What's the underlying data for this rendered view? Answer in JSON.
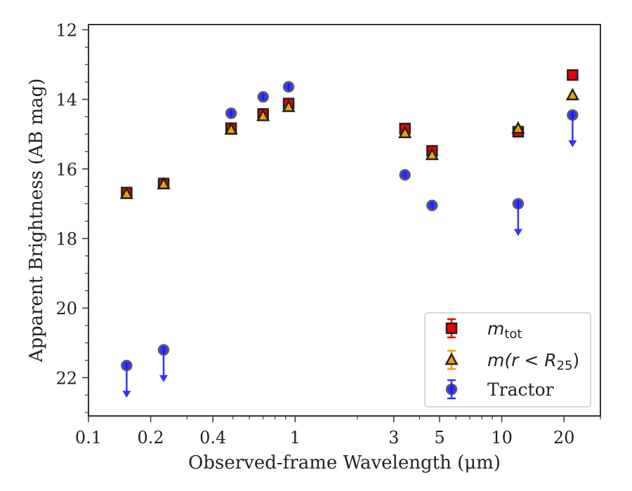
{
  "chart_data": {
    "type": "scatter",
    "xlabel": "Observed-frame Wavelength (μm)",
    "ylabel": "Apparent Brightness (AB mag)",
    "xscale": "log",
    "xlim": [
      0.1,
      30
    ],
    "ylim": [
      23.1,
      11.85
    ],
    "y_inverted": true,
    "x_ticks": [
      0.1,
      0.2,
      0.4,
      1,
      3,
      5,
      10,
      20
    ],
    "x_tick_labels": [
      "0.1",
      "0.2",
      "0.4",
      "1",
      "3",
      "5",
      "10",
      "20"
    ],
    "y_ticks": [
      12,
      14,
      16,
      18,
      20,
      22
    ],
    "y_tick_labels": [
      "12",
      "14",
      "16",
      "18",
      "20",
      "22"
    ],
    "grid": false,
    "legend_position": "lower-right",
    "series": [
      {
        "name": "m_tot",
        "legend_label": {
          "base": "m",
          "sub": "tot"
        },
        "marker": "square",
        "fill": "#ee0000",
        "edge": "#222222",
        "error_color": "#ee0000",
        "points": [
          {
            "x": 0.153,
            "y": 16.68
          },
          {
            "x": 0.231,
            "y": 16.42
          },
          {
            "x": 0.49,
            "y": 14.83
          },
          {
            "x": 0.7,
            "y": 14.42
          },
          {
            "x": 0.93,
            "y": 14.12
          },
          {
            "x": 3.4,
            "y": 14.84
          },
          {
            "x": 4.6,
            "y": 15.48
          },
          {
            "x": 12.0,
            "y": 14.93
          },
          {
            "x": 22.0,
            "y": 13.3
          }
        ]
      },
      {
        "name": "m(r < R25)",
        "legend_label": {
          "base": "m(r < R",
          "sub": "25",
          "tail": ")"
        },
        "marker": "triangle",
        "fill": "#f2a000",
        "edge": "#222222",
        "error_color": "#f2a000",
        "points": [
          {
            "x": 0.153,
            "y": 16.72
          },
          {
            "x": 0.231,
            "y": 16.44
          },
          {
            "x": 0.49,
            "y": 14.87
          },
          {
            "x": 0.7,
            "y": 14.48
          },
          {
            "x": 0.93,
            "y": 14.22
          },
          {
            "x": 3.4,
            "y": 14.97
          },
          {
            "x": 4.6,
            "y": 15.6
          },
          {
            "x": 12.0,
            "y": 14.84
          },
          {
            "x": 22.0,
            "y": 13.88
          }
        ]
      },
      {
        "name": "Tractor",
        "legend_label": {
          "base": "Tractor"
        },
        "marker": "circle",
        "fill": "#1010ff",
        "edge": "#444444",
        "error_color": "#3333ff",
        "points": [
          {
            "x": 0.153,
            "y": 21.65,
            "upper_limit": true
          },
          {
            "x": 0.231,
            "y": 21.2,
            "upper_limit": true
          },
          {
            "x": 0.49,
            "y": 14.4
          },
          {
            "x": 0.7,
            "y": 13.93
          },
          {
            "x": 0.93,
            "y": 13.64
          },
          {
            "x": 3.4,
            "y": 16.17
          },
          {
            "x": 4.6,
            "y": 17.05
          },
          {
            "x": 12.0,
            "y": 17.0,
            "upper_limit": true
          },
          {
            "x": 22.0,
            "y": 14.45,
            "upper_limit": true
          }
        ]
      }
    ]
  }
}
